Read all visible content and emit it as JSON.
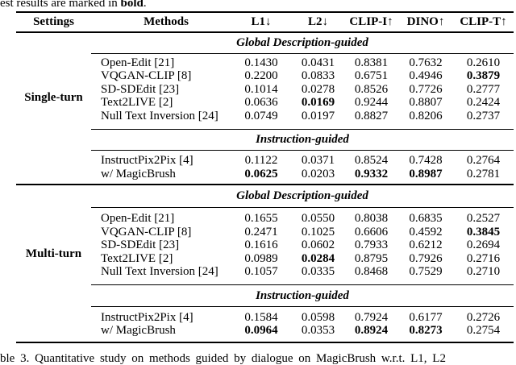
{
  "caption_top": {
    "prefix": "est results are marked in ",
    "bold_word": "bold",
    "suffix": "."
  },
  "caption_bottom": "ble 3.  Quantitative study on methods guided by dialogue on MagicBrush w.r.t. L1, L2",
  "table": {
    "headers": [
      "Settings",
      "Methods",
      "L1↓",
      "L2↓",
      "CLIP-I↑",
      "DINO↑",
      "CLIP-T↑"
    ],
    "groups": [
      {
        "setting": "Single-turn",
        "sections": [
          {
            "title": "Global Description-guided",
            "rows": [
              {
                "method": "Open-Edit [21]",
                "values": [
                  "0.1430",
                  "0.0431",
                  "0.8381",
                  "0.7632",
                  "0.2610"
                ],
                "bold": [
                  false,
                  false,
                  false,
                  false,
                  false
                ]
              },
              {
                "method": "VQGAN-CLIP [8]",
                "values": [
                  "0.2200",
                  "0.0833",
                  "0.6751",
                  "0.4946",
                  "0.3879"
                ],
                "bold": [
                  false,
                  false,
                  false,
                  false,
                  true
                ]
              },
              {
                "method": "SD-SDEdit [23]",
                "values": [
                  "0.1014",
                  "0.0278",
                  "0.8526",
                  "0.7726",
                  "0.2777"
                ],
                "bold": [
                  false,
                  false,
                  false,
                  false,
                  false
                ]
              },
              {
                "method": "Text2LIVE [2]",
                "values": [
                  "0.0636",
                  "0.0169",
                  "0.9244",
                  "0.8807",
                  "0.2424"
                ],
                "bold": [
                  false,
                  true,
                  false,
                  false,
                  false
                ]
              },
              {
                "method": "Null Text Inversion [24]",
                "values": [
                  "0.0749",
                  "0.0197",
                  "0.8827",
                  "0.8206",
                  "0.2737"
                ],
                "bold": [
                  false,
                  false,
                  false,
                  false,
                  false
                ]
              }
            ]
          },
          {
            "title": "Instruction-guided",
            "rows": [
              {
                "method": "InstructPix2Pix [4]",
                "values": [
                  "0.1122",
                  "0.0371",
                  "0.8524",
                  "0.7428",
                  "0.2764"
                ],
                "bold": [
                  false,
                  false,
                  false,
                  false,
                  false
                ]
              },
              {
                "method": "w/ MagicBrush",
                "values": [
                  "0.0625",
                  "0.0203",
                  "0.9332",
                  "0.8987",
                  "0.2781"
                ],
                "bold": [
                  true,
                  false,
                  true,
                  true,
                  false
                ]
              }
            ]
          }
        ]
      },
      {
        "setting": "Multi-turn",
        "sections": [
          {
            "title": "Global Description-guided",
            "rows": [
              {
                "method": "Open-Edit [21]",
                "values": [
                  "0.1655",
                  "0.0550",
                  "0.8038",
                  "0.6835",
                  "0.2527"
                ],
                "bold": [
                  false,
                  false,
                  false,
                  false,
                  false
                ]
              },
              {
                "method": "VQGAN-CLIP [8]",
                "values": [
                  "0.2471",
                  "0.1025",
                  "0.6606",
                  "0.4592",
                  "0.3845"
                ],
                "bold": [
                  false,
                  false,
                  false,
                  false,
                  true
                ]
              },
              {
                "method": "SD-SDEdit [23]",
                "values": [
                  "0.1616",
                  "0.0602",
                  "0.7933",
                  "0.6212",
                  "0.2694"
                ],
                "bold": [
                  false,
                  false,
                  false,
                  false,
                  false
                ]
              },
              {
                "method": "Text2LIVE [2]",
                "values": [
                  "0.0989",
                  "0.0284",
                  "0.8795",
                  "0.7926",
                  "0.2716"
                ],
                "bold": [
                  false,
                  true,
                  false,
                  false,
                  false
                ]
              },
              {
                "method": "Null Text Inversion [24]",
                "values": [
                  "0.1057",
                  "0.0335",
                  "0.8468",
                  "0.7529",
                  "0.2710"
                ],
                "bold": [
                  false,
                  false,
                  false,
                  false,
                  false
                ]
              }
            ]
          },
          {
            "title": "Instruction-guided",
            "rows": [
              {
                "method": "InstructPix2Pix [4]",
                "values": [
                  "0.1584",
                  "0.0598",
                  "0.7924",
                  "0.6177",
                  "0.2726"
                ],
                "bold": [
                  false,
                  false,
                  false,
                  false,
                  false
                ]
              },
              {
                "method": "w/ MagicBrush",
                "values": [
                  "0.0964",
                  "0.0353",
                  "0.8924",
                  "0.8273",
                  "0.2754"
                ],
                "bold": [
                  true,
                  false,
                  true,
                  true,
                  false
                ]
              }
            ]
          }
        ]
      }
    ]
  }
}
